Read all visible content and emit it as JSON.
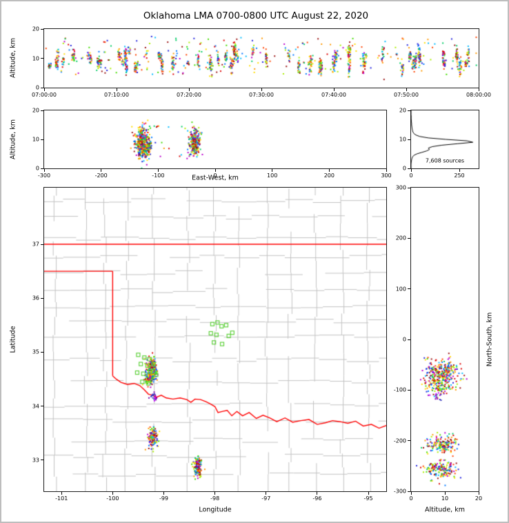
{
  "title": "Oklahoma LMA 0700-0800 UTC August 22, 2020",
  "colors": {
    "source_palette": [
      "#2222dd",
      "#0077ff",
      "#00bbff",
      "#00cc66",
      "#44dd00",
      "#aaee00",
      "#ffdd00",
      "#ff9900",
      "#ff4400",
      "#dd0000",
      "#991111",
      "#bb00cc"
    ],
    "purple_palette": [
      "#9900cc",
      "#7700aa",
      "#cc00ff",
      "#3333bb"
    ],
    "county_line": "#c2c2c2",
    "state_border": "#ff0000",
    "flash_marker": "#5fd13c",
    "histogram_line": "#000000"
  },
  "chart_data": [
    {
      "id": "time_height",
      "type": "scatter",
      "xlabel": "",
      "ylabel": "Altitude, km",
      "xlim": [
        0,
        3600
      ],
      "ylim": [
        0,
        20
      ],
      "xticks": {
        "values": [
          0,
          600,
          1200,
          1800,
          2400,
          3000,
          3600
        ],
        "labels": [
          "07:00:00",
          "07:10:00",
          "07:20:00",
          "07:30:00",
          "07:40:00",
          "07:50:00",
          "08:00:00"
        ]
      },
      "yticks": {
        "values": [
          0,
          10,
          20
        ],
        "labels": [
          "0",
          "10",
          "20"
        ]
      },
      "clusters": [
        {
          "kind": "streaks",
          "seed": 11,
          "n_streaks": 58,
          "t_range": [
            40,
            3560
          ],
          "alt_range": [
            6.5,
            12.5
          ],
          "spread_range": [
            1.2,
            4.2
          ],
          "pts_range": [
            6,
            34
          ],
          "t_width": 20
        },
        {
          "kind": "sparse",
          "seed": 12,
          "n": 240,
          "x_range": [
            10,
            3590
          ],
          "y_range": [
            4.5,
            17.5
          ]
        }
      ]
    },
    {
      "id": "ew_height",
      "type": "scatter",
      "xlabel": "East-West, km",
      "ylabel": "Altitude, km",
      "xlim": [
        -300,
        300
      ],
      "ylim": [
        0,
        20
      ],
      "xticks": {
        "values": [
          -300,
          -200,
          -100,
          0,
          100,
          200,
          300
        ],
        "labels": [
          "-300",
          "-200",
          "-100",
          "0",
          "100",
          "200",
          "300"
        ]
      },
      "yticks": {
        "values": [
          0,
          10,
          20
        ],
        "labels": [
          "0",
          "10",
          "20"
        ]
      },
      "clusters": [
        {
          "kind": "gauss",
          "seed": 21,
          "cx": -128,
          "cy": 8.6,
          "sx": 5,
          "sy": 2.6,
          "n": 420
        },
        {
          "kind": "gauss",
          "seed": 22,
          "cx": -118,
          "cy": 7.2,
          "sx": 3,
          "sy": 1.8,
          "n": 120
        },
        {
          "kind": "gauss",
          "seed": 23,
          "cx": -36,
          "cy": 9.0,
          "sx": 5,
          "sy": 2.2,
          "n": 230
        },
        {
          "kind": "sparse",
          "seed": 24,
          "n": 36,
          "x_range": [
            -155,
            -10
          ],
          "y_range": [
            3,
            15
          ]
        }
      ]
    },
    {
      "id": "alt_histogram",
      "type": "line",
      "annotation": "7,608 sources",
      "xlabel": "",
      "ylabel": "",
      "xlim": [
        0,
        350
      ],
      "ylim": [
        0,
        20
      ],
      "xticks": {
        "values": [
          0,
          250
        ],
        "labels": [
          "0",
          "250"
        ]
      },
      "yticks": {
        "values": [
          0,
          10,
          20
        ],
        "labels": [
          "0",
          "10",
          "20"
        ]
      },
      "alt_bins": [
        0,
        0.5,
        1,
        1.5,
        2,
        2.5,
        3,
        3.5,
        4,
        4.5,
        5,
        5.5,
        6,
        6.5,
        7,
        7.5,
        8,
        8.5,
        9,
        9.5,
        10,
        10.5,
        11,
        11.5,
        12,
        12.5,
        13,
        13.5,
        14,
        14.5,
        15,
        15.5,
        16,
        16.5,
        17,
        17.5,
        18,
        18.5,
        19,
        19.5,
        20
      ],
      "counts": [
        0,
        0,
        0,
        0,
        1,
        2,
        3,
        5,
        8,
        15,
        30,
        55,
        80,
        95,
        90,
        110,
        160,
        240,
        320,
        290,
        180,
        90,
        45,
        25,
        15,
        10,
        8,
        6,
        5,
        4,
        3,
        3,
        2,
        2,
        1,
        1,
        1,
        0,
        0,
        0,
        0
      ]
    },
    {
      "id": "map",
      "type": "scatter",
      "xlabel": "Longitude",
      "ylabel": "Latitude",
      "xlim": [
        -101.34,
        -94.65
      ],
      "ylim": [
        32.42,
        38.05
      ],
      "xticks": {
        "values": [
          -101,
          -100,
          -99,
          -98,
          -97,
          -96,
          -95
        ],
        "labels": [
          "-101",
          "-100",
          "-99",
          "-98",
          "-97",
          "-96",
          "-95"
        ]
      },
      "yticks": {
        "values": [
          33,
          34,
          35,
          36,
          37
        ],
        "labels": [
          "33",
          "34",
          "35",
          "36",
          "37"
        ]
      },
      "county_grid": {
        "dlon": 0.52,
        "dlat": 0.36,
        "skip": 0.1,
        "jitter": 0.08,
        "seed": 7
      },
      "state_border": [
        [
          [
            -101.34,
            37.0
          ],
          [
            -94.65,
            37.0
          ]
        ],
        [
          [
            -101.34,
            36.5
          ],
          [
            -100.0,
            36.5
          ]
        ],
        [
          [
            -100.0,
            36.5
          ],
          [
            -100.0,
            34.56
          ]
        ],
        [
          [
            -100.0,
            34.56
          ],
          [
            -99.93,
            34.5
          ],
          [
            -99.84,
            34.44
          ],
          [
            -99.71,
            34.4
          ],
          [
            -99.58,
            34.42
          ],
          [
            -99.47,
            34.38
          ],
          [
            -99.38,
            34.3
          ],
          [
            -99.3,
            34.22
          ],
          [
            -99.21,
            34.2
          ],
          [
            -99.15,
            34.16
          ],
          [
            -99.05,
            34.2
          ],
          [
            -98.95,
            34.15
          ],
          [
            -98.82,
            34.13
          ],
          [
            -98.68,
            34.15
          ],
          [
            -98.55,
            34.12
          ],
          [
            -98.47,
            34.07
          ],
          [
            -98.39,
            34.13
          ],
          [
            -98.28,
            34.12
          ],
          [
            -98.17,
            34.08
          ],
          [
            -98.09,
            34.04
          ],
          [
            -98.0,
            33.99
          ],
          [
            -97.94,
            33.88
          ],
          [
            -97.86,
            33.9
          ],
          [
            -97.76,
            33.92
          ],
          [
            -97.67,
            33.82
          ],
          [
            -97.57,
            33.9
          ],
          [
            -97.46,
            33.82
          ],
          [
            -97.33,
            33.88
          ],
          [
            -97.19,
            33.77
          ],
          [
            -97.06,
            33.83
          ],
          [
            -96.93,
            33.78
          ],
          [
            -96.79,
            33.71
          ],
          [
            -96.63,
            33.78
          ],
          [
            -96.48,
            33.7
          ],
          [
            -96.32,
            33.73
          ],
          [
            -96.16,
            33.75
          ],
          [
            -96.0,
            33.66
          ],
          [
            -95.84,
            33.69
          ],
          [
            -95.7,
            33.73
          ],
          [
            -95.55,
            33.71
          ],
          [
            -95.4,
            33.68
          ],
          [
            -95.25,
            33.72
          ],
          [
            -95.1,
            33.63
          ],
          [
            -94.94,
            33.66
          ],
          [
            -94.79,
            33.59
          ],
          [
            -94.65,
            33.64
          ]
        ]
      ],
      "flash_markers": [
        [
          -98.05,
          35.52
        ],
        [
          -97.95,
          35.55
        ],
        [
          -97.87,
          35.48
        ],
        [
          -97.78,
          35.5
        ],
        [
          -98.08,
          35.35
        ],
        [
          -97.97,
          35.32
        ],
        [
          -97.73,
          35.3
        ],
        [
          -97.66,
          35.36
        ],
        [
          -98.02,
          35.18
        ],
        [
          -97.86,
          35.15
        ],
        [
          -99.5,
          34.95
        ],
        [
          -99.38,
          34.9
        ],
        [
          -99.28,
          34.87
        ],
        [
          -99.45,
          34.78
        ],
        [
          -99.32,
          34.75
        ],
        [
          -99.2,
          34.78
        ],
        [
          -99.52,
          34.62
        ],
        [
          -99.4,
          34.6
        ],
        [
          -99.26,
          34.64
        ],
        [
          -99.15,
          34.58
        ],
        [
          -99.42,
          34.45
        ],
        [
          -99.3,
          34.42
        ]
      ],
      "clusters": [
        {
          "kind": "gauss",
          "seed": 41,
          "cx": -99.23,
          "cy": 34.7,
          "sx": 0.05,
          "sy": 0.09,
          "n": 200
        },
        {
          "kind": "gauss",
          "seed": 42,
          "cx": -99.26,
          "cy": 34.52,
          "sx": 0.05,
          "sy": 0.06,
          "n": 150
        },
        {
          "kind": "gauss",
          "seed": 43,
          "cx": -99.2,
          "cy": 34.17,
          "sx": 0.025,
          "sy": 0.04,
          "n": 20,
          "palette": "purple"
        },
        {
          "kind": "gauss",
          "seed": 44,
          "cx": -99.21,
          "cy": 33.42,
          "sx": 0.045,
          "sy": 0.08,
          "n": 160
        },
        {
          "kind": "gauss",
          "seed": 45,
          "cx": -98.33,
          "cy": 32.87,
          "sx": 0.04,
          "sy": 0.09,
          "n": 140
        }
      ]
    },
    {
      "id": "ns_height",
      "type": "scatter",
      "xlabel": "Altitude, km",
      "ylabel": "North-South, km",
      "xlim": [
        0,
        20
      ],
      "ylim": [
        -300,
        300
      ],
      "xticks": {
        "values": [
          0,
          10,
          20
        ],
        "labels": [
          "0",
          "10",
          "20"
        ]
      },
      "yticks": {
        "values": [
          300,
          200,
          100,
          0,
          -100,
          -200,
          -300
        ],
        "labels": [
          "300",
          "200",
          "100",
          "0",
          "-100",
          "-200",
          "-300"
        ]
      },
      "clusters": [
        {
          "kind": "gauss",
          "seed": 51,
          "cx": 9,
          "cy": -68,
          "sx": 2.4,
          "sy": 14,
          "n": 300
        },
        {
          "kind": "gauss",
          "seed": 52,
          "cx": 8,
          "cy": -95,
          "sx": 1.8,
          "sy": 8,
          "n": 70
        },
        {
          "kind": "gauss",
          "seed": 53,
          "cx": 7.2,
          "cy": -112,
          "sx": 1.2,
          "sy": 4,
          "n": 16,
          "palette": "purple"
        },
        {
          "kind": "gauss",
          "seed": 54,
          "cx": 9.5,
          "cy": -207,
          "sx": 2.4,
          "sy": 9,
          "n": 170
        },
        {
          "kind": "gauss",
          "seed": 55,
          "cx": 9,
          "cy": -258,
          "sx": 2.6,
          "sy": 10,
          "n": 160
        }
      ]
    }
  ]
}
